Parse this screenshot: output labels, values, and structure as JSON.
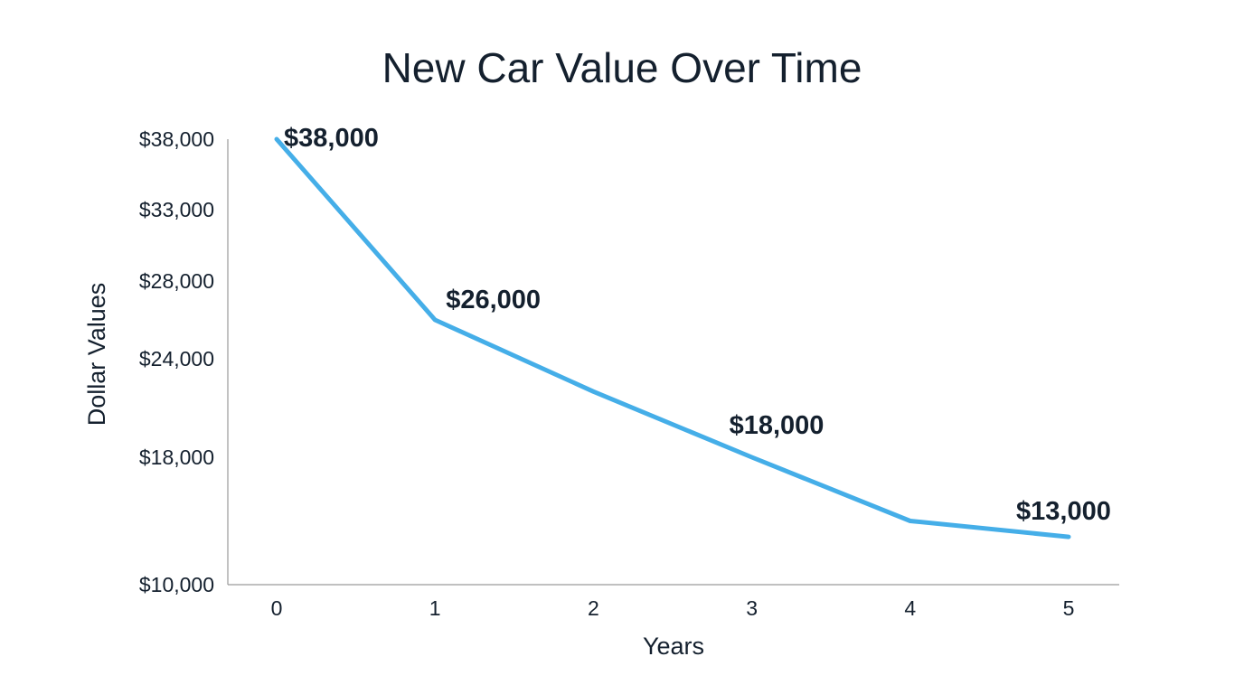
{
  "chart_data": {
    "type": "line",
    "title": "New Car Value Over Time",
    "xlabel": "Years",
    "ylabel": "Dollar Values",
    "x": [
      0,
      1,
      2,
      3,
      4,
      5
    ],
    "x_tick_labels": [
      "0",
      "1",
      "2",
      "3",
      "4",
      "5"
    ],
    "series": [
      {
        "values": [
          38000,
          26000,
          22000,
          18000,
          14000,
          13000
        ],
        "color": "#45aee8"
      }
    ],
    "y_ticks": [
      {
        "value": 38000,
        "label": "$38,000"
      },
      {
        "value": 33000,
        "label": "$33,000"
      },
      {
        "value": 28000,
        "label": "$28,000"
      },
      {
        "value": 24000,
        "label": "$24,000"
      },
      {
        "value": 18000,
        "label": "$18,000"
      },
      {
        "value": 10000,
        "label": "$10,000"
      }
    ],
    "data_labels": [
      {
        "x": 0,
        "y": 38000,
        "text": "$38,000"
      },
      {
        "x": 1,
        "y": 26000,
        "text": "$26,000"
      },
      {
        "x": 3,
        "y": 18000,
        "text": "$18,000"
      },
      {
        "x": 5,
        "y": 13000,
        "text": "$13,000"
      }
    ],
    "ylim": [
      10000,
      38000
    ],
    "xlim": [
      0,
      5
    ],
    "grid": false,
    "legend": "none",
    "axis_color": "#9a9a9a",
    "text_color": "#14202e"
  }
}
